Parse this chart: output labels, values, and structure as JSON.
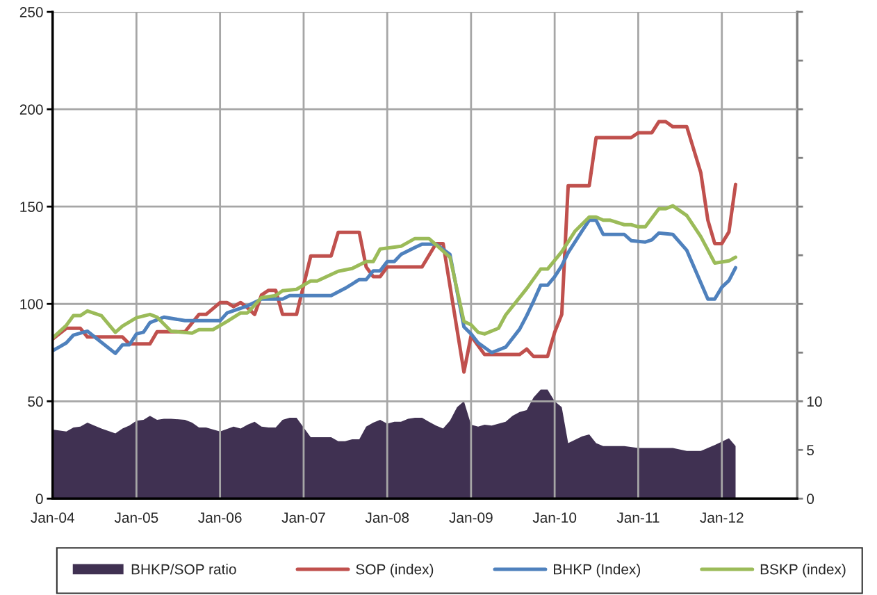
{
  "chart_data": {
    "type": "line",
    "xlim": [
      "2004-01-01",
      "2012-11-25"
    ],
    "xticks": [
      {
        "value": "2004-01",
        "label": "Jan-04"
      },
      {
        "value": "2005-01",
        "label": "Jan-05"
      },
      {
        "value": "2006-01",
        "label": "Jan-06"
      },
      {
        "value": "2007-01",
        "label": "Jan-07"
      },
      {
        "value": "2008-01",
        "label": "Jan-08"
      },
      {
        "value": "2009-01",
        "label": "Jan-09"
      },
      {
        "value": "2010-01",
        "label": "Jan-10"
      },
      {
        "value": "2011-01",
        "label": "Jan-11"
      },
      {
        "value": "2012-01",
        "label": "Jan-12"
      }
    ],
    "ylim": [
      0,
      250
    ],
    "yticks": [
      0,
      50,
      100,
      150,
      200,
      250
    ],
    "y2lim": [
      0,
      50
    ],
    "y2ticks": [
      0,
      5,
      10,
      {
        "value": 15,
        "label": null
      },
      {
        "value": 20,
        "label": null
      },
      {
        "value": 25,
        "label": null
      },
      {
        "value": 30,
        "label": null
      },
      {
        "value": 35,
        "label": null
      },
      {
        "value": 40,
        "label": null
      },
      {
        "value": 45,
        "label": null
      },
      {
        "value": 50,
        "label": null
      }
    ],
    "grid": true,
    "legend": "bottom",
    "marker": "none",
    "line_style": "solid",
    "series": [
      {
        "name": "BHKP/SOP ratio",
        "type": "area",
        "axis": "y2",
        "color": "#403152",
        "x": [
          "2004-01",
          "2004-03",
          "2004-04",
          "2004-05",
          "2004-06",
          "2004-07",
          "2004-08",
          "2004-10",
          "2004-11",
          "2004-12",
          "2005-01",
          "2005-02",
          "2005-03",
          "2005-04",
          "2005-05",
          "2005-06",
          "2005-08",
          "2005-09",
          "2005-10",
          "2005-11",
          "2006-01",
          "2006-03",
          "2006-04",
          "2006-05",
          "2006-06",
          "2006-07",
          "2006-08",
          "2006-09",
          "2006-10",
          "2006-11",
          "2006-12",
          "2007-02",
          "2007-05",
          "2007-06",
          "2007-07",
          "2007-08",
          "2007-09",
          "2007-10",
          "2007-11",
          "2007-12",
          "2008-01",
          "2008-02",
          "2008-03",
          "2008-04",
          "2008-05",
          "2008-06",
          "2008-07",
          "2008-08",
          "2008-09",
          "2008-10",
          "2008-11",
          "2008-12",
          "2009-01",
          "2009-02",
          "2009-03",
          "2009-04",
          "2009-06",
          "2009-07",
          "2009-08",
          "2009-09",
          "2009-10",
          "2009-11",
          "2009-12",
          "2010-01",
          "2010-02",
          "2010-03",
          "2010-05",
          "2010-06",
          "2010-07",
          "2010-08",
          "2010-11",
          "2011-01",
          "2011-04",
          "2011-06",
          "2011-08",
          "2011-10",
          "2011-12",
          "2012-02",
          "2012-03"
        ],
        "values": [
          7.1,
          6.9,
          7.3,
          7.4,
          7.8,
          7.5,
          7.2,
          6.7,
          7.2,
          7.5,
          8.0,
          8.1,
          8.5,
          8.1,
          8.2,
          8.2,
          8.1,
          7.8,
          7.3,
          7.3,
          6.9,
          7.4,
          7.2,
          7.6,
          7.9,
          7.4,
          7.3,
          7.3,
          8.1,
          8.3,
          8.3,
          6.3,
          6.3,
          5.9,
          5.9,
          6.1,
          6.1,
          7.4,
          7.8,
          8.1,
          7.7,
          7.9,
          7.9,
          8.2,
          8.3,
          8.3,
          7.9,
          7.5,
          7.2,
          8.0,
          9.4,
          10.0,
          7.6,
          7.4,
          7.6,
          7.5,
          7.9,
          8.5,
          8.9,
          9.1,
          10.4,
          11.2,
          11.2,
          10.0,
          9.4,
          5.7,
          6.4,
          6.6,
          5.7,
          5.4,
          5.4,
          5.2,
          5.2,
          5.2,
          4.9,
          4.9,
          5.5,
          6.2,
          5.4
        ]
      },
      {
        "name": "SOP (index)",
        "color": "#c0504d",
        "x": [
          "2004-01",
          "2004-03",
          "2004-05",
          "2004-06",
          "2004-11",
          "2004-12",
          "2005-03",
          "2005-04",
          "2005-08",
          "2005-10",
          "2005-11",
          "2006-01",
          "2006-02",
          "2006-03",
          "2006-04",
          "2006-05",
          "2006-06",
          "2006-07",
          "2006-08",
          "2006-09",
          "2006-10",
          "2006-12",
          "2007-02",
          "2007-05",
          "2007-06",
          "2007-09",
          "2007-10",
          "2007-11",
          "2007-12",
          "2008-01",
          "2008-06",
          "2008-08",
          "2008-09",
          "2008-12",
          "2009-01",
          "2009-03",
          "2009-08",
          "2009-09",
          "2009-10",
          "2009-12",
          "2010-01",
          "2010-02",
          "2010-03",
          "2010-06",
          "2010-07",
          "2010-12",
          "2011-01",
          "2011-03",
          "2011-04",
          "2011-05",
          "2011-06",
          "2011-08",
          "2011-10",
          "2011-11",
          "2011-12",
          "2012-01",
          "2012-02",
          "2012-03"
        ],
        "values": [
          82,
          87.5,
          87.5,
          83,
          83,
          79.5,
          79.5,
          85.7,
          85.7,
          94.6,
          94.6,
          100.7,
          100.7,
          98.6,
          100.7,
          98,
          94.6,
          104.6,
          107,
          107,
          94.6,
          94.6,
          124.6,
          124.6,
          136.8,
          136.8,
          119,
          114,
          114,
          119,
          119,
          131,
          131,
          65,
          83.6,
          74,
          74,
          76.8,
          73,
          73,
          85.4,
          94.6,
          160.7,
          160.7,
          185.4,
          185.4,
          187.9,
          187.9,
          193.6,
          193.6,
          191,
          191,
          167.5,
          143,
          131,
          131,
          137,
          161.4
        ]
      },
      {
        "name": "BHKP (Index)",
        "color": "#4f81bd",
        "x": [
          "2004-01",
          "2004-02",
          "2004-03",
          "2004-04",
          "2004-06",
          "2004-10",
          "2004-11",
          "2004-12",
          "2005-01",
          "2005-02",
          "2005-03",
          "2005-05",
          "2005-08",
          "2006-01",
          "2006-02",
          "2006-05",
          "2006-07",
          "2006-10",
          "2006-11",
          "2007-05",
          "2007-07",
          "2007-09",
          "2007-10",
          "2007-11",
          "2007-12",
          "2008-01",
          "2008-02",
          "2008-03",
          "2008-05",
          "2008-06",
          "2008-08",
          "2008-10",
          "2008-12",
          "2009-01",
          "2009-02",
          "2009-04",
          "2009-06",
          "2009-08",
          "2009-09",
          "2009-10",
          "2009-11",
          "2009-12",
          "2010-01",
          "2010-02",
          "2010-03",
          "2010-05",
          "2010-06",
          "2010-07",
          "2010-08",
          "2010-11",
          "2010-12",
          "2011-02",
          "2011-03",
          "2011-04",
          "2011-06",
          "2011-08",
          "2011-11",
          "2011-12",
          "2012-01",
          "2012-02",
          "2012-03"
        ],
        "values": [
          76,
          78,
          80,
          84,
          86,
          74.6,
          79,
          79,
          84.6,
          85.5,
          90.4,
          93.2,
          91.4,
          91.4,
          95.4,
          99,
          102.5,
          102.5,
          104.3,
          104.3,
          108,
          112.5,
          112.5,
          117,
          117,
          121.8,
          121.8,
          125.4,
          129,
          130.7,
          130.7,
          125.4,
          88.2,
          84.6,
          80,
          75,
          77.8,
          87,
          94,
          101.4,
          109.6,
          109.6,
          114,
          119.6,
          126.4,
          137.5,
          143,
          143,
          135.7,
          135.7,
          132.5,
          131.8,
          132.9,
          136.4,
          135.7,
          127.5,
          102.5,
          102.5,
          108.6,
          112,
          118.6
        ]
      },
      {
        "name": "BSKP (index)",
        "color": "#9bbb59",
        "x": [
          "2004-01",
          "2004-03",
          "2004-04",
          "2004-05",
          "2004-06",
          "2004-08",
          "2004-10",
          "2004-11",
          "2005-01",
          "2005-03",
          "2005-04",
          "2005-06",
          "2005-09",
          "2005-10",
          "2005-12",
          "2006-02",
          "2006-04",
          "2006-05",
          "2006-07",
          "2006-09",
          "2006-10",
          "2006-12",
          "2007-02",
          "2007-03",
          "2007-06",
          "2007-08",
          "2007-10",
          "2007-11",
          "2007-12",
          "2008-03",
          "2008-05",
          "2008-07",
          "2008-08",
          "2008-10",
          "2008-12",
          "2009-01",
          "2009-02",
          "2009-03",
          "2009-05",
          "2009-06",
          "2009-09",
          "2009-11",
          "2009-12",
          "2010-02",
          "2010-04",
          "2010-06",
          "2010-07",
          "2010-08",
          "2010-09",
          "2010-11",
          "2010-12",
          "2011-01",
          "2011-02",
          "2011-04",
          "2011-05",
          "2011-06",
          "2011-08",
          "2011-10",
          "2011-12",
          "2012-02",
          "2012-03"
        ],
        "values": [
          82.5,
          89,
          94,
          94,
          96.4,
          94,
          85.4,
          88.6,
          92.9,
          94.6,
          93.2,
          86,
          85,
          86.8,
          86.8,
          91,
          95.4,
          95.4,
          103.2,
          104.3,
          106.8,
          107.5,
          111.8,
          111.8,
          116.8,
          118.2,
          121.8,
          121.8,
          128.2,
          129.6,
          133.6,
          133.6,
          130.4,
          124,
          91,
          89.3,
          85.4,
          84.6,
          87.5,
          94.3,
          107.9,
          117.9,
          117.9,
          126.8,
          137.5,
          144.6,
          144.6,
          143,
          143,
          140.7,
          140.7,
          139.6,
          139.6,
          148.9,
          148.9,
          150.4,
          145.4,
          134.6,
          121,
          122.1,
          124
        ]
      }
    ]
  }
}
